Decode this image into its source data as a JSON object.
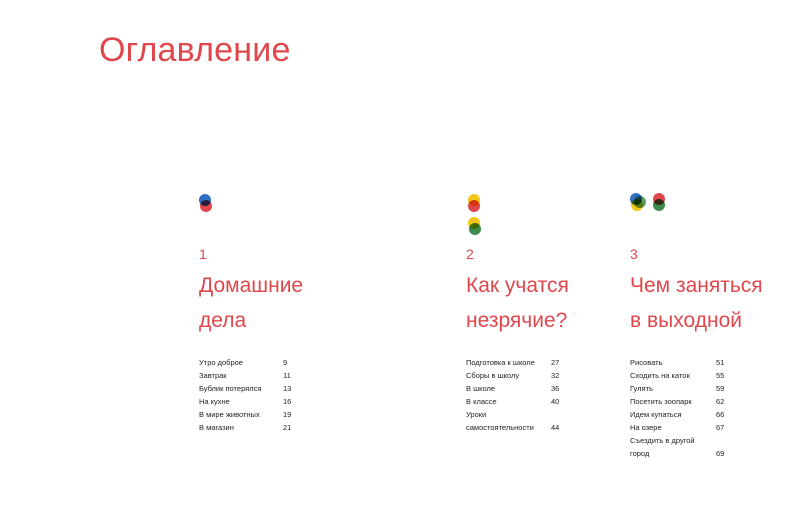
{
  "header": {
    "title": "Оглавление"
  },
  "colors": {
    "accent": "#e0474c",
    "blue": "#2f6fc4",
    "red": "#e0474c",
    "yellow": "#f2c61a",
    "green": "#3e8a4a"
  },
  "chapters": [
    {
      "number": "1",
      "title_lines": [
        "Домашние",
        "дела"
      ],
      "items": [
        {
          "label": "Утро доброе",
          "page": "9"
        },
        {
          "label": "Завтрак",
          "page": "11"
        },
        {
          "label": "Бублик потерялся",
          "page": "13"
        },
        {
          "label": "На кухне",
          "page": "16"
        },
        {
          "label": "В мире животных",
          "page": "19"
        },
        {
          "label": "В магазин",
          "page": "21"
        }
      ]
    },
    {
      "number": "2",
      "title_lines": [
        "Как учатся",
        "незрячие?"
      ],
      "items": [
        {
          "label": "Подготовка к школе",
          "page": "27"
        },
        {
          "label": "Сборы в школу",
          "page": "32"
        },
        {
          "label": "В школе",
          "page": "36"
        },
        {
          "label": "В классе",
          "page": "40"
        },
        {
          "label": "Уроки",
          "page": ""
        },
        {
          "label": "самостоятельности",
          "page": "44"
        }
      ]
    },
    {
      "number": "3",
      "title_lines": [
        "Чем заняться",
        "в выходной"
      ],
      "items": [
        {
          "label": "Рисовать",
          "page": "51"
        },
        {
          "label": "Сходить на каток",
          "page": "55"
        },
        {
          "label": "Гулять",
          "page": "59"
        },
        {
          "label": "Посетить зоопарк",
          "page": "62"
        },
        {
          "label": "Идем купаться",
          "page": "66"
        },
        {
          "label": "На озере",
          "page": "67"
        },
        {
          "label": "Съездить в другой",
          "page": ""
        },
        {
          "label": "город",
          "page": "69"
        }
      ]
    }
  ]
}
